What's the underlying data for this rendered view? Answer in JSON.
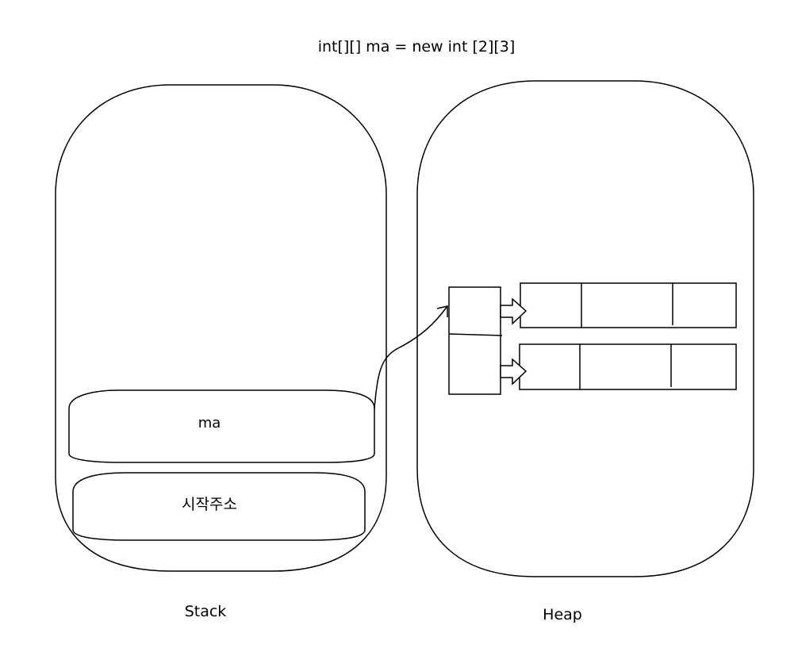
{
  "title": "int[][] ma = new int [2][3]",
  "stack": {
    "label": "Stack",
    "ma_label": "ma",
    "start_address_label": "시작주소"
  },
  "heap": {
    "label": "Heap",
    "reference_array_cells": 2,
    "row_arrays": [
      {
        "cells": 3
      },
      {
        "cells": 3
      }
    ]
  },
  "colors": {
    "stroke": "#000000",
    "background": "#ffffff"
  }
}
